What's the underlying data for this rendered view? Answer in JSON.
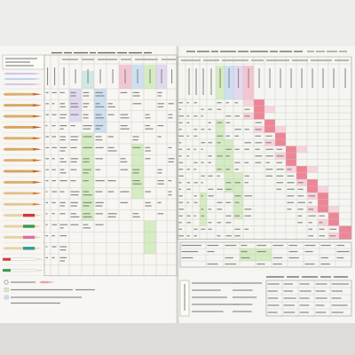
{
  "colors": {
    "backdrop": "#ededeb",
    "paper_left": "#f7f6f2",
    "paper_right": "#f5f5f1",
    "bottom_band": "#dddcd8",
    "fold": "#d6d6d2",
    "grid": "#c9c9c4",
    "frame": "#9d9d98",
    "text_mark": "#8c8c89",
    "title": "#5c5c5a",
    "green_cell": "#d5ecc2",
    "blue_cell": "#cde0f2",
    "lavender_cell": "#e2d8ef",
    "pink_cell": "#f4c5d1",
    "red_cell": "#ee8597",
    "light_pink_cell": "#f8d3dc",
    "teal_cell": "#cfe8e3",
    "box_fill": "#fbfbf8"
  },
  "header_floats": [
    "#cfc6ea",
    "#bdd4ef",
    "#d9c7e9"
  ],
  "floats": [
    {
      "body": "#dcae6c",
      "tip": "#c8692c"
    },
    {
      "body": "#d9a660",
      "tip": "#c46428"
    },
    {
      "body": "#dbab68",
      "tip": "#c86a2d"
    },
    {
      "body": "#d7a45e",
      "tip": "#bf5f26"
    },
    {
      "body": "#dcae6e",
      "tip": "#c96d30"
    },
    {
      "body": "#d8a862",
      "tip": "#c3662b"
    },
    {
      "body": "#ddb172",
      "tip": "#ca7034"
    },
    {
      "body": "#d6a35c",
      "tip": "#c16128"
    },
    {
      "body": "#dcae6a",
      "tip": "#c86b2e"
    },
    {
      "body": "#e2c08a",
      "tip": "#cf7d3a"
    },
    {
      "body": "#e4c594",
      "tip": "#d38543"
    },
    {
      "body": "#e7d1a4",
      "head": "#d7343e"
    },
    {
      "body": "#e7d1a4",
      "head": "#3a9a4c"
    },
    {
      "body": "#e7d1a4",
      "head": "#e36c9f"
    },
    {
      "body": "#e7d1a4",
      "head": "#2e9c95"
    },
    {
      "body": "#faf8f2",
      "outline": "#bdbbb5",
      "base": "#d63a3a"
    },
    {
      "body": "#faf8f2",
      "outline": "#bdbbb5",
      "base": "#3b9c4a"
    }
  ]
}
